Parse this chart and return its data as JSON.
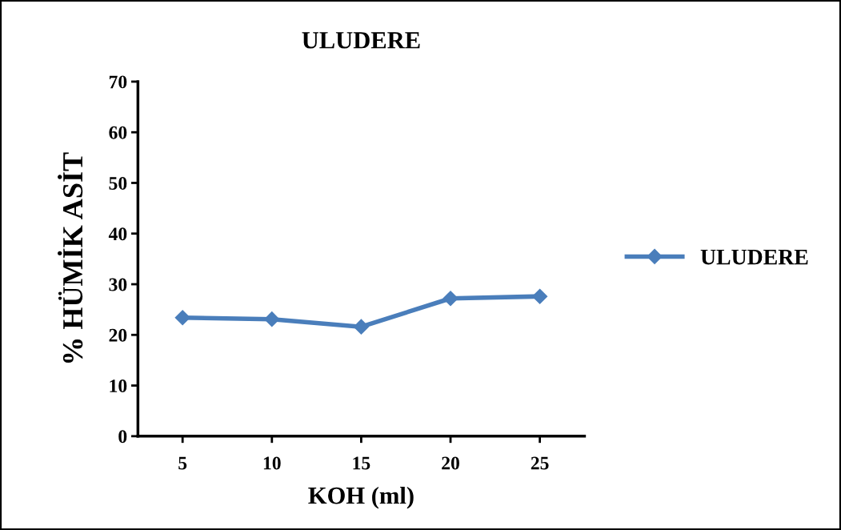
{
  "chart_data": {
    "type": "line",
    "title": "ULUDERE",
    "xlabel": "KOH (ml)",
    "ylabel": "% HÜMİK ASİT",
    "categories": [
      "5",
      "10",
      "15",
      "20",
      "25"
    ],
    "series": [
      {
        "name": "ULUDERE",
        "color": "#4a7ebb",
        "values": [
          23.4,
          23.1,
          21.6,
          27.2,
          27.6
        ]
      }
    ],
    "ylim": [
      0,
      70
    ],
    "yticks": [
      0,
      10,
      20,
      30,
      40,
      50,
      60,
      70
    ],
    "marker": "diamond",
    "line_style": "solid",
    "legend": "right",
    "grid": false
  }
}
